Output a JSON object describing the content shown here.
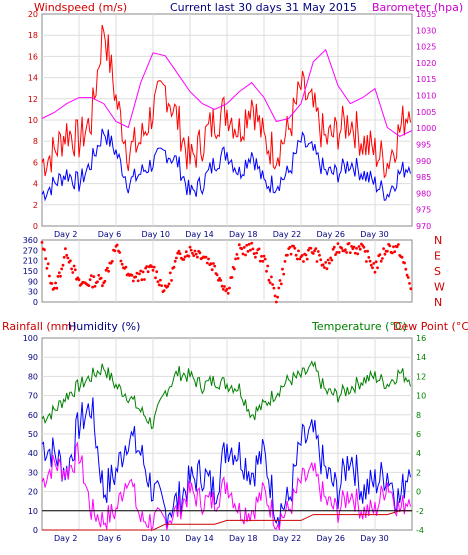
{
  "chart_data": [
    {
      "type": "line",
      "title": "Current last 30 days 31 May 2015",
      "left_axis_label": "Windspeed (m/s)",
      "right_axis_label": "Barometer (hpa)",
      "left_ticks": [
        "0",
        "2",
        "4",
        "6",
        "8",
        "10",
        "12",
        "14",
        "16",
        "18",
        "20"
      ],
      "right_ticks": [
        "970",
        "975",
        "980",
        "985",
        "990",
        "995",
        "1000",
        "1005",
        "1010",
        "1015",
        "1020",
        "1025",
        "1030",
        "1035"
      ],
      "x_labels": [
        "Day 2",
        "Day 6",
        "Day 10",
        "Day 14",
        "Day 18",
        "Day 22",
        "Day 26",
        "Day 30"
      ],
      "ylim_left": [
        0,
        20
      ],
      "ylim_right": [
        967,
        1038
      ],
      "grid": true,
      "series": [
        {
          "color": "#ff0000",
          "x": [
            0,
            1,
            2,
            3,
            4,
            5,
            6,
            7,
            8,
            9,
            10,
            11,
            12,
            13,
            14,
            15,
            16,
            17,
            18,
            19,
            20,
            21,
            22,
            23,
            24,
            25,
            26,
            27,
            28,
            29,
            30
          ],
          "values": [
            6,
            7,
            9,
            8,
            10,
            19,
            12,
            7,
            8,
            11,
            13,
            10,
            6,
            8,
            10,
            11,
            9,
            12,
            8,
            7,
            9,
            13,
            11,
            8,
            9,
            10,
            8,
            7,
            6,
            9,
            12
          ]
        },
        {
          "color": "#0000ff",
          "x": [
            0,
            1,
            2,
            3,
            4,
            5,
            6,
            7,
            8,
            9,
            10,
            11,
            12,
            13,
            14,
            15,
            16,
            17,
            18,
            19,
            20,
            21,
            22,
            23,
            24,
            25,
            26,
            27,
            28,
            29,
            30
          ],
          "values": [
            3,
            4,
            5,
            4,
            6,
            9,
            7,
            4,
            5,
            6,
            7,
            6,
            3,
            4,
            6,
            7,
            5,
            7,
            4,
            4,
            5,
            8,
            7,
            5,
            5,
            6,
            5,
            4,
            3,
            5,
            6
          ]
        },
        {
          "color": "#ff00ff",
          "x": [
            0,
            1,
            2,
            3,
            4,
            5,
            6,
            7,
            8,
            9,
            10,
            11,
            12,
            13,
            14,
            15,
            16,
            17,
            18,
            19,
            20,
            21,
            22,
            23,
            24,
            25,
            26,
            27,
            28,
            29,
            30
          ],
          "values": [
            1003,
            1005,
            1008,
            1010,
            1010,
            1008,
            1002,
            1000,
            1015,
            1025,
            1024,
            1018,
            1012,
            1008,
            1006,
            1008,
            1012,
            1015,
            1010,
            1002,
            1003,
            1008,
            1022,
            1026,
            1014,
            1008,
            1010,
            1013,
            1000,
            997,
            999
          ]
        }
      ]
    },
    {
      "type": "scatter",
      "title": "",
      "left_ticks": [
        "0",
        "30",
        "90",
        "150",
        "210",
        "270",
        "360"
      ],
      "right_labels": [
        "N",
        "W",
        "S",
        "E",
        "N"
      ],
      "ylim": [
        0,
        360
      ],
      "series": [
        {
          "color": "#ff0000",
          "x": [
            0,
            1,
            2,
            3,
            4,
            5,
            6,
            7,
            8,
            9,
            10,
            11,
            12,
            13,
            14,
            15,
            16,
            17,
            18,
            19,
            20,
            21,
            22,
            23,
            24,
            25,
            26,
            27,
            28,
            29,
            30
          ],
          "values": [
            330,
            60,
            300,
            100,
            120,
            130,
            320,
            140,
            150,
            200,
            60,
            260,
            300,
            280,
            200,
            60,
            300,
            310,
            250,
            20,
            310,
            260,
            300,
            200,
            320,
            320,
            300,
            200,
            320,
            300,
            60
          ]
        }
      ]
    },
    {
      "type": "line",
      "title": "",
      "left_axis_label_1": "Rainfall (mm)",
      "left_axis_label_2": "Humidity (%)",
      "right_axis_label_1": "Temperature (°C)",
      "right_axis_label_2": "Dew Point (°C)",
      "left_ticks": [
        "0",
        "10",
        "20",
        "30",
        "40",
        "50",
        "60",
        "70",
        "80",
        "90",
        "100"
      ],
      "right_ticks": [
        "-4",
        "-2",
        "0",
        "2",
        "4",
        "6",
        "8",
        "10",
        "12",
        "14",
        "16"
      ],
      "x_labels": [
        "Day 2",
        "Day 6",
        "Day 10",
        "Day 14",
        "Day 18",
        "Day 22",
        "Day 26",
        "Day 30"
      ],
      "ylim_left": [
        0,
        100
      ],
      "ylim_right": [
        -5,
        16
      ],
      "grid": true,
      "series": [
        {
          "color": "#008000",
          "x": [
            0,
            1,
            2,
            3,
            4,
            5,
            6,
            7,
            8,
            9,
            10,
            11,
            12,
            13,
            14,
            15,
            16,
            17,
            18,
            19,
            20,
            21,
            22,
            23,
            24,
            25,
            26,
            27,
            28,
            29,
            30
          ],
          "values": [
            58,
            62,
            70,
            75,
            80,
            85,
            75,
            70,
            62,
            55,
            72,
            82,
            80,
            75,
            78,
            76,
            74,
            60,
            65,
            72,
            78,
            80,
            85,
            72,
            70,
            74,
            78,
            80,
            76,
            82,
            78
          ]
        },
        {
          "color": "#0000ff",
          "x": [
            0,
            1,
            2,
            3,
            4,
            5,
            6,
            7,
            8,
            9,
            10,
            11,
            12,
            13,
            14,
            15,
            16,
            17,
            18,
            19,
            20,
            21,
            22,
            23,
            24,
            25,
            26,
            27,
            28,
            29,
            30
          ],
          "values": [
            45,
            40,
            30,
            55,
            65,
            20,
            30,
            50,
            40,
            20,
            10,
            15,
            25,
            30,
            20,
            45,
            40,
            30,
            40,
            10,
            15,
            45,
            50,
            30,
            20,
            40,
            20,
            25,
            30,
            15,
            40
          ]
        },
        {
          "color": "#ff00ff",
          "x": [
            0,
            1,
            2,
            3,
            4,
            5,
            6,
            7,
            8,
            9,
            10,
            11,
            12,
            13,
            14,
            15,
            16,
            17,
            18,
            19,
            20,
            21,
            22,
            23,
            24,
            25,
            26,
            27,
            28,
            29,
            30
          ],
          "values": [
            25,
            35,
            30,
            40,
            10,
            5,
            10,
            30,
            5,
            5,
            5,
            10,
            20,
            15,
            15,
            25,
            10,
            10,
            20,
            5,
            10,
            25,
            30,
            15,
            10,
            20,
            10,
            10,
            25,
            10,
            20
          ]
        },
        {
          "color": "#cc0000",
          "x": [
            0,
            1,
            2,
            3,
            4,
            5,
            6,
            7,
            8,
            9,
            10,
            11,
            12,
            13,
            14,
            15,
            16,
            17,
            18,
            19,
            20,
            21,
            22,
            23,
            24,
            25,
            26,
            27,
            28,
            29,
            30
          ],
          "values": [
            0,
            0,
            0,
            0,
            0,
            0,
            0,
            0,
            0,
            0,
            3,
            3,
            3,
            3,
            3,
            5,
            5,
            5,
            5,
            5,
            5,
            5,
            8,
            8,
            8,
            8,
            8,
            8,
            8,
            10,
            10
          ]
        },
        {
          "color": "#000000",
          "x": [
            0,
            1,
            2,
            3,
            4,
            5,
            6,
            7,
            8,
            9,
            10,
            11,
            12,
            13,
            14,
            15,
            16,
            17,
            18,
            19,
            20,
            21,
            22,
            23,
            24,
            25,
            26,
            27,
            28,
            29,
            30
          ],
          "values": [
            10,
            10,
            10,
            10,
            10,
            10,
            10,
            10,
            10,
            10,
            10,
            10,
            10,
            10,
            10,
            10,
            10,
            10,
            10,
            10,
            10,
            10,
            10,
            10,
            10,
            10,
            10,
            10,
            10,
            10,
            10
          ]
        }
      ]
    }
  ],
  "colors": {
    "wind": "#ff0000",
    "gust": "#0000ff",
    "baro": "#ff00ff",
    "temp": "#008000",
    "dew": "#cc0000"
  }
}
